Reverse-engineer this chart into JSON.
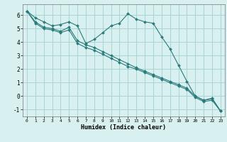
{
  "xlabel": "Humidex (Indice chaleur)",
  "background_color": "#d8f0f0",
  "grid_color": "#aad4d4",
  "line_color": "#2a7a7a",
  "xlim": [
    -0.5,
    23.5
  ],
  "ylim": [
    -1.5,
    6.8
  ],
  "xticks": [
    0,
    1,
    2,
    3,
    4,
    5,
    6,
    7,
    8,
    9,
    10,
    11,
    12,
    13,
    14,
    15,
    16,
    17,
    18,
    19,
    20,
    21,
    22,
    23
  ],
  "yticks": [
    -1,
    0,
    1,
    2,
    3,
    4,
    5,
    6
  ],
  "series1_x": [
    0,
    1,
    2,
    3,
    4,
    5,
    6,
    7,
    8,
    9,
    10,
    11,
    12,
    13,
    14,
    15,
    16,
    17,
    18,
    19,
    20,
    21,
    22,
    23
  ],
  "series1_y": [
    6.3,
    5.8,
    5.5,
    5.2,
    5.3,
    5.5,
    5.2,
    3.9,
    4.2,
    4.7,
    5.2,
    5.4,
    6.1,
    5.7,
    5.5,
    5.4,
    4.4,
    3.5,
    2.3,
    1.1,
    0.0,
    -0.3,
    -0.15,
    -1.1
  ],
  "series2_x": [
    0,
    1,
    2,
    3,
    4,
    5,
    6,
    7,
    8,
    9,
    10,
    11,
    12,
    13,
    14,
    15,
    16,
    17,
    18,
    19,
    20,
    21,
    22,
    23
  ],
  "series2_y": [
    6.3,
    5.5,
    5.1,
    5.0,
    4.8,
    5.1,
    4.1,
    3.8,
    3.6,
    3.3,
    3.0,
    2.7,
    2.4,
    2.1,
    1.85,
    1.6,
    1.35,
    1.1,
    0.85,
    0.6,
    0.0,
    -0.3,
    -0.2,
    -1.1
  ],
  "series3_x": [
    0,
    1,
    2,
    3,
    4,
    5,
    6,
    7,
    8,
    9,
    10,
    11,
    12,
    13,
    14,
    15,
    16,
    17,
    18,
    19,
    20,
    21,
    22,
    23
  ],
  "series3_y": [
    6.3,
    5.4,
    5.0,
    4.9,
    4.7,
    4.9,
    3.9,
    3.6,
    3.4,
    3.1,
    2.8,
    2.5,
    2.2,
    2.0,
    1.75,
    1.5,
    1.25,
    1.0,
    0.75,
    0.5,
    -0.1,
    -0.4,
    -0.3,
    -1.1
  ]
}
